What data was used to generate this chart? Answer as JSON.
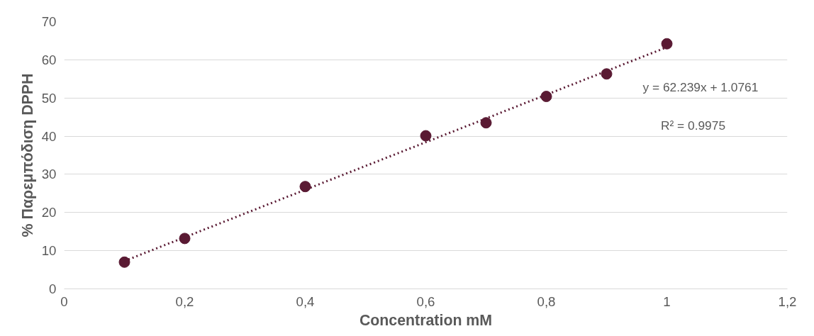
{
  "chart_data": {
    "type": "scatter",
    "xlabel": "Concentration mM",
    "ylabel": "% Παρεμπόδιση DPPH",
    "xlim": [
      0,
      1.2
    ],
    "ylim": [
      0,
      70
    ],
    "xticks": [
      0,
      {
        "value": 0.2,
        "label": "0,2"
      },
      {
        "value": 0.4,
        "label": "0,4"
      },
      {
        "value": 0.6,
        "label": "0,6"
      },
      {
        "value": 0.8,
        "label": "0,8"
      },
      1,
      {
        "value": 1.2,
        "label": "1,2"
      }
    ],
    "yticks": [
      0,
      10,
      20,
      30,
      40,
      50,
      60,
      70
    ],
    "grid": "y",
    "marker": "circle",
    "series": [
      {
        "color": "#5a1a33",
        "x": [
          0.1,
          0.2,
          0.4,
          0.6,
          0.7,
          0.8,
          0.9,
          1.0
        ],
        "values": [
          7.0,
          13.2,
          26.8,
          40.1,
          43.5,
          50.4,
          56.3,
          64.2
        ]
      },
      {
        "type": "line",
        "color": "#5a1a33",
        "line_style": "dotted",
        "marker": "none",
        "x": [
          0.1,
          1.0
        ],
        "values": [
          7.3,
          63.3
        ]
      }
    ],
    "annotations": [
      "y = 62.239x + 1.0761",
      "R² = 0.9975"
    ]
  }
}
